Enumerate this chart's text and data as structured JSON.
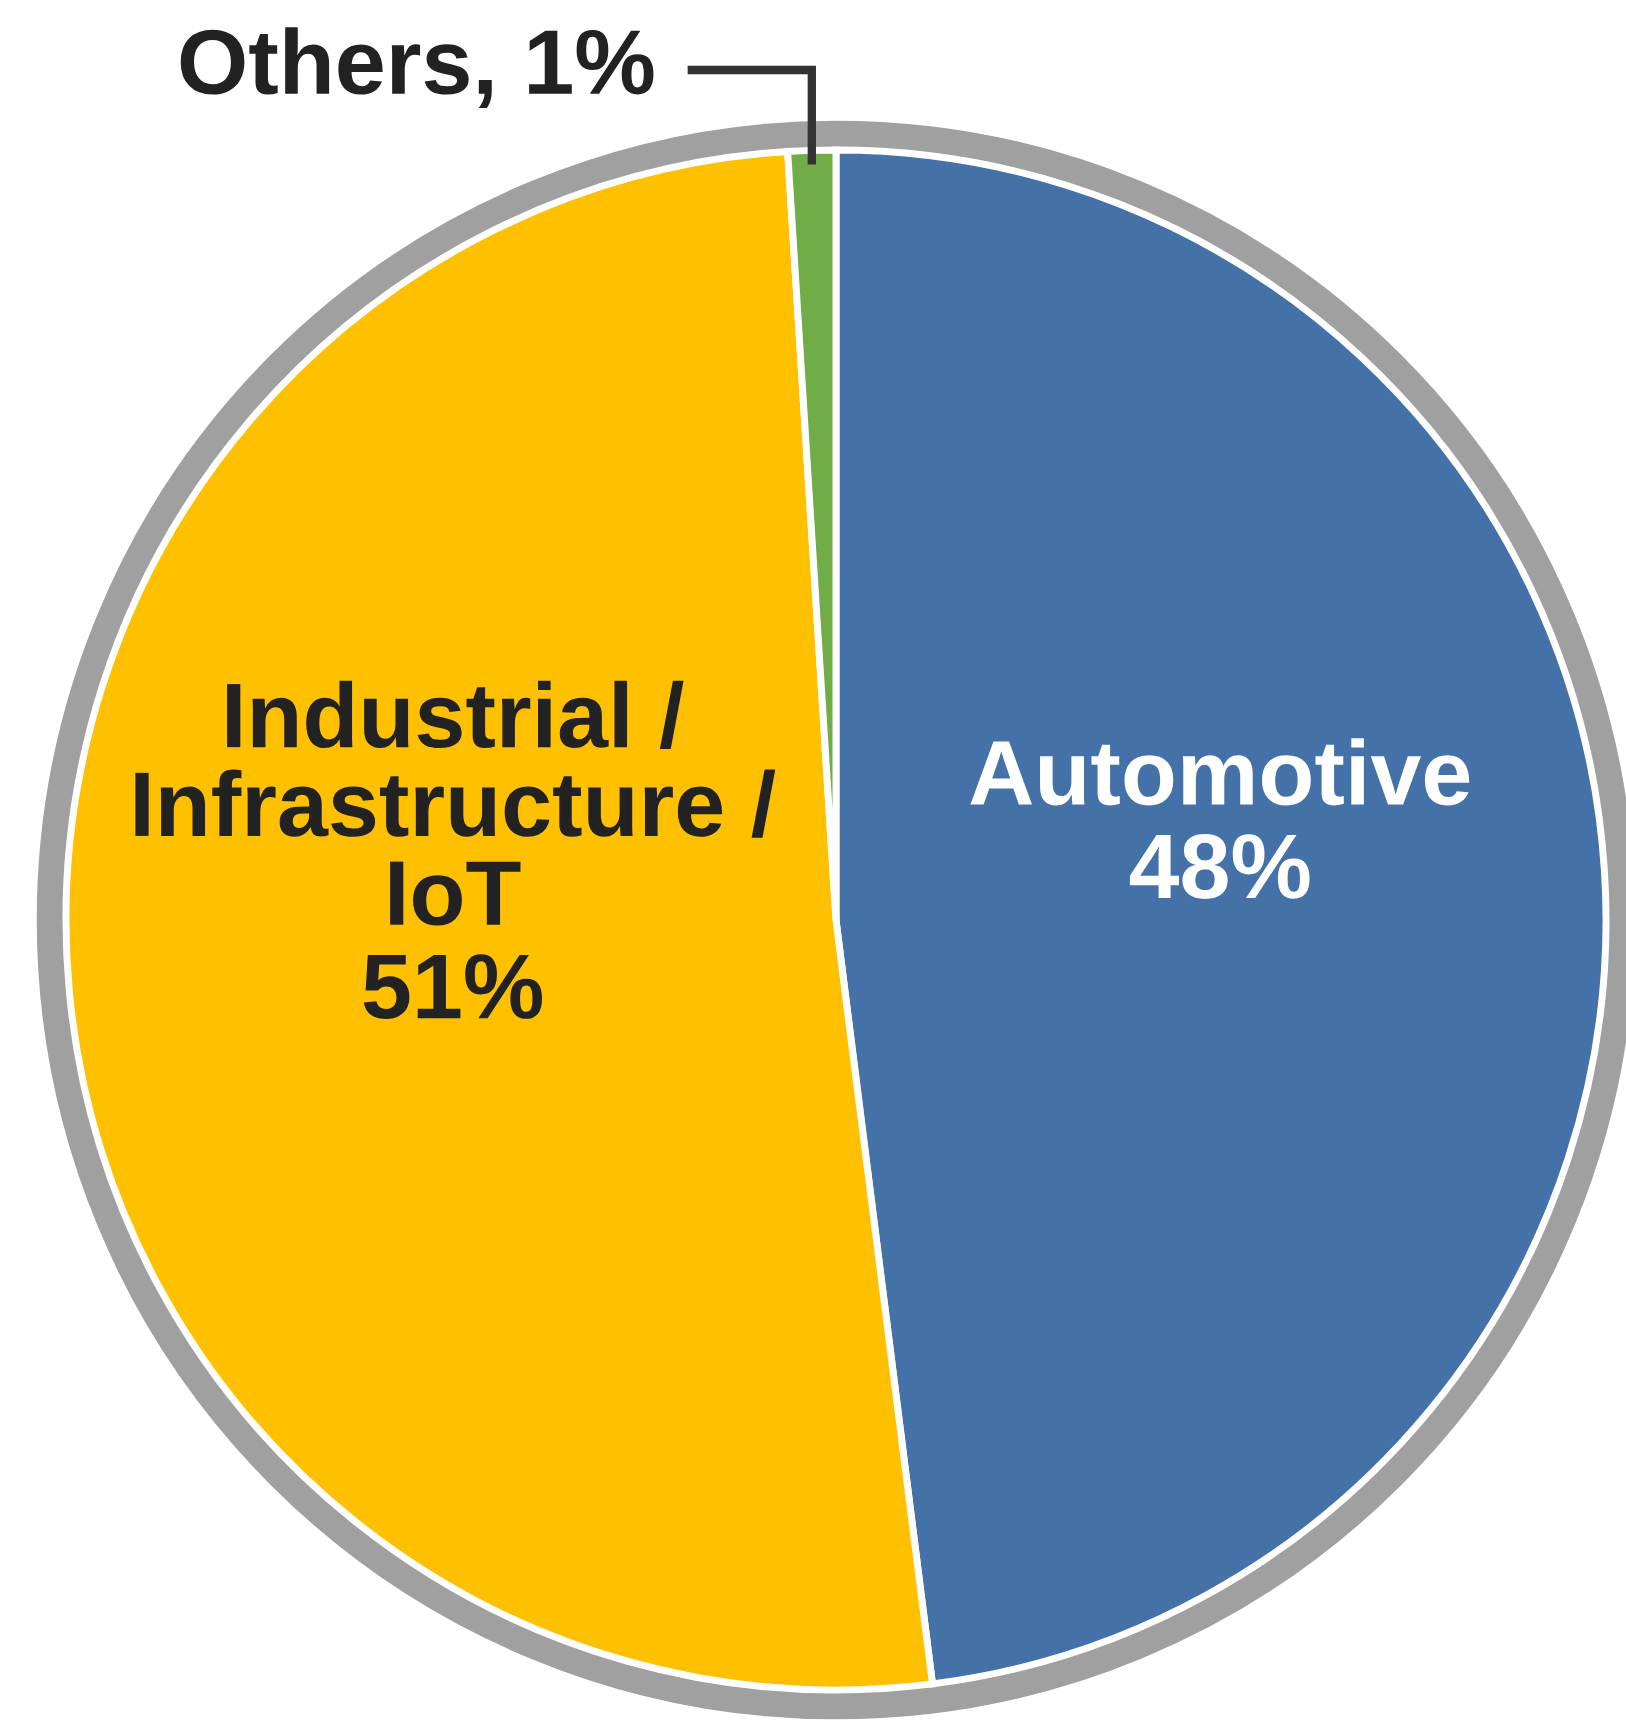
{
  "chart_data": {
    "type": "pie",
    "categories": [
      "Automotive",
      "Industrial /\nInfrastructure /\nIoT",
      "Others"
    ],
    "values": [
      48,
      51,
      1
    ],
    "value_labels": [
      "48%",
      "51%",
      "1%"
    ],
    "colors": [
      "#4472a8",
      "#ffc000",
      "#70ad47"
    ],
    "legend": false
  }
}
